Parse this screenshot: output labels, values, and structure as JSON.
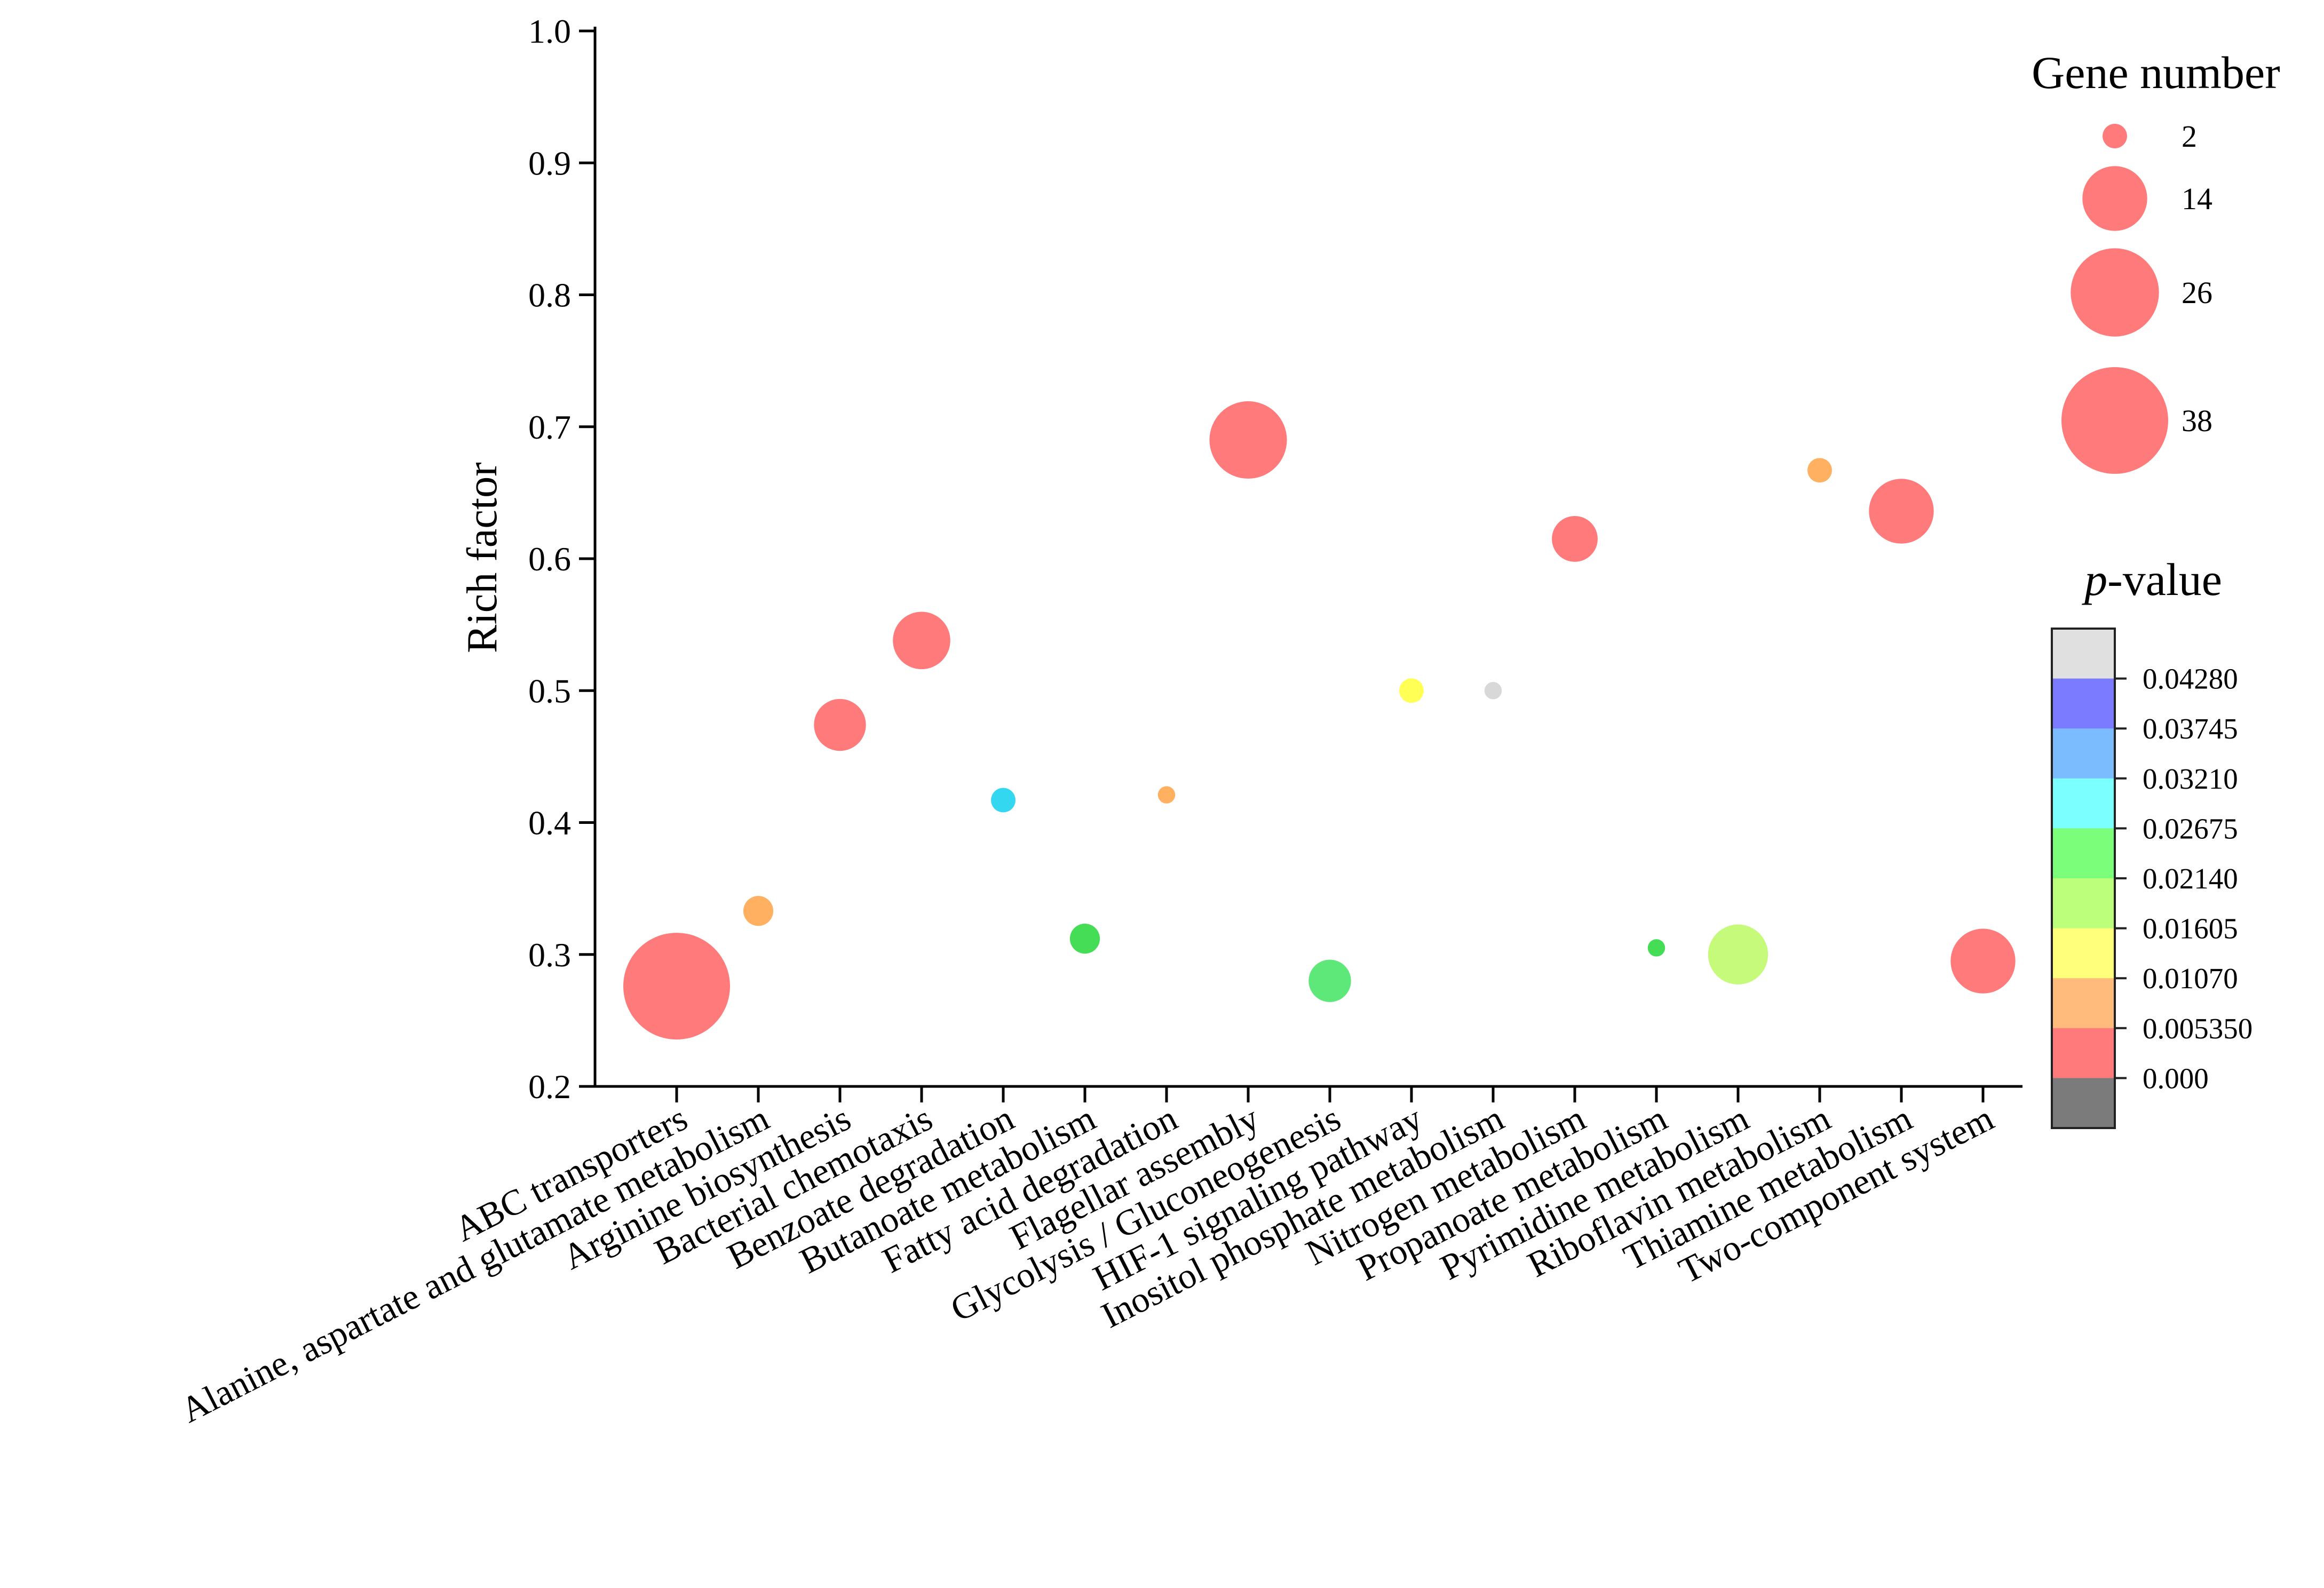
{
  "chart_data": {
    "type": "scatter",
    "ylabel": "Rich factor",
    "ylim": [
      0.2,
      1.0
    ],
    "yticks": [
      "0.2",
      "0.3",
      "0.4",
      "0.5",
      "0.6",
      "0.7",
      "0.8",
      "0.9",
      "1.0"
    ],
    "categories": [
      "ABC transporters",
      "Alanine, aspartate and glutamate metabolism",
      "Arginine biosynthesis",
      "Bacterial chemotaxis",
      "Benzoate degradation",
      "Butanoate metabolism",
      "Fatty acid degradation",
      "Flagellar assembly",
      "Glycolysis / Gluconeogenesis",
      "HIF-1 signaling pathway",
      "Inositol phosphate metabolism",
      "Nitrogen metabolism",
      "Propanoate metabolism",
      "Pyrimidine metabolism",
      "Riboflavin metabolism",
      "Thiamine metabolism",
      "Two-component system"
    ],
    "points": [
      {
        "rich_factor": 0.276,
        "gene_number": 38,
        "color": "#ff7a7a"
      },
      {
        "rich_factor": 0.333,
        "gene_number": 3,
        "color": "#ffb060"
      },
      {
        "rich_factor": 0.474,
        "gene_number": 9,
        "color": "#ff7a7a"
      },
      {
        "rich_factor": 0.538,
        "gene_number": 11,
        "color": "#ff7a7a"
      },
      {
        "rich_factor": 0.417,
        "gene_number": 2,
        "color": "#33d8f0"
      },
      {
        "rich_factor": 0.312,
        "gene_number": 3,
        "color": "#44dd55"
      },
      {
        "rich_factor": 0.421,
        "gene_number": 1,
        "color": "#ffb060"
      },
      {
        "rich_factor": 0.69,
        "gene_number": 20,
        "color": "#ff7a7a"
      },
      {
        "rich_factor": 0.28,
        "gene_number": 6,
        "color": "#5fe87a"
      },
      {
        "rich_factor": 0.5,
        "gene_number": 2,
        "color": "#ffff55"
      },
      {
        "rich_factor": 0.5,
        "gene_number": 1,
        "color": "#d8d8d8"
      },
      {
        "rich_factor": 0.615,
        "gene_number": 7,
        "color": "#ff7a7a"
      },
      {
        "rich_factor": 0.305,
        "gene_number": 1,
        "color": "#44dd55"
      },
      {
        "rich_factor": 0.3,
        "gene_number": 12,
        "color": "#c6fa7a"
      },
      {
        "rich_factor": 0.667,
        "gene_number": 2,
        "color": "#ffb060"
      },
      {
        "rich_factor": 0.636,
        "gene_number": 14,
        "color": "#ff7a7a"
      },
      {
        "rich_factor": 0.295,
        "gene_number": 14,
        "color": "#ff7a7a"
      }
    ],
    "size_legend": {
      "title": "Gene number",
      "values": [
        2,
        14,
        26,
        38
      ],
      "color": "#ff7a7a"
    },
    "color_legend": {
      "title_italic": "p",
      "title_rest": "-value",
      "labels": [
        "0.04280",
        "0.03745",
        "0.03210",
        "0.02675",
        "0.02140",
        "0.01605",
        "0.01070",
        "0.005350",
        "0.000"
      ],
      "colors": [
        "#e0e0e0",
        "#7b7bff",
        "#7bbbff",
        "#7bffff",
        "#7bff7b",
        "#bbff7b",
        "#ffff7b",
        "#ffbb7b",
        "#ff7b7b",
        "#7b7b7b"
      ]
    }
  }
}
